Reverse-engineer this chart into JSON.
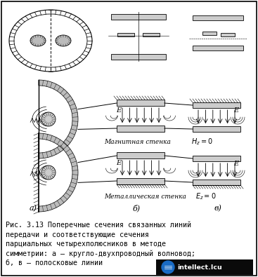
{
  "background_color": "#ffffff",
  "border_color": "#000000",
  "caption_lines": [
    "Рис. 3.13 Поперечные сечения связанных линий",
    "передачи и соответствующие сечения",
    "парциальных четырехполюсников в методе",
    "симметрии: а – кругло-двухпроводный волновод;",
    "б, в – полосковые линии"
  ],
  "watermark_text": "intellect.Icu",
  "watermark_bg": "#0a0a0a",
  "watermark_circle": "#1a6bc4",
  "label_a": "а)",
  "label_b": "б)",
  "label_v": "в)",
  "mag_wall_label": "Магнитная стенка",
  "mag_wall_eq": "$H_z=0$",
  "met_wall_label": "Металлическая стенка",
  "met_wall_eq": "$E_z=0$"
}
